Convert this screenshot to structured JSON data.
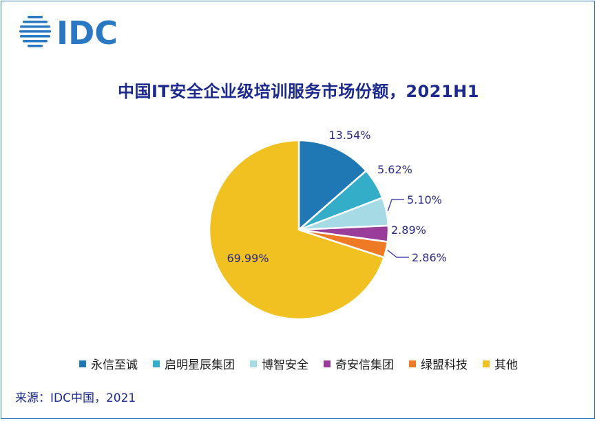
{
  "brand": {
    "logo_text": "IDC"
  },
  "colors": {
    "title": "#1b2a8c",
    "label": "#2a2a86",
    "leader": "#4a4ab0",
    "frame": "#2e75b6",
    "logo": "#2a78c2"
  },
  "chart_data": {
    "type": "pie",
    "title": "中国IT安全企业级培训服务市场份额，2021H1",
    "categories": [
      "永信至诚",
      "启明星辰集团",
      "博智安全",
      "奇安信集团",
      "绿盟科技",
      "其他"
    ],
    "values": [
      13.54,
      5.62,
      5.1,
      2.89,
      2.86,
      69.99
    ],
    "value_labels": [
      "13.54%",
      "5.62%",
      "5.10%",
      "2.89%",
      "2.86%",
      "69.99%"
    ],
    "colors": [
      "#1f78b4",
      "#33adc8",
      "#a6dbe6",
      "#9a3d9a",
      "#ef7a26",
      "#f1c021"
    ],
    "legend_position": "bottom",
    "start_angle": "12 o'clock, clockwise"
  },
  "footer": {
    "source": "来源：IDC中国，2021"
  }
}
